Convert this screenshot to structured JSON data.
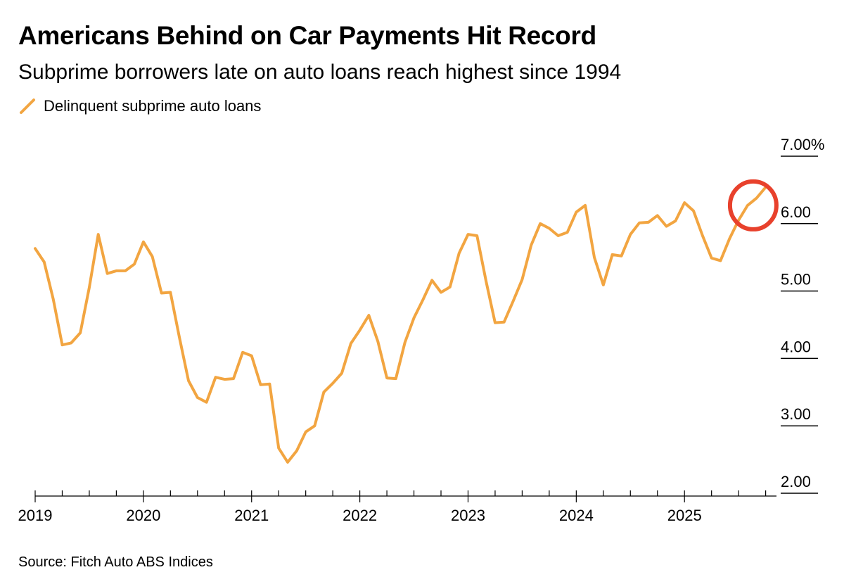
{
  "chart_data": {
    "type": "line",
    "title": "Americans Behind on Car Payments Hit Record",
    "subtitle": "Subprime borrowers late on auto loans reach highest since 1994",
    "source": "Source: Fitch Auto ABS Indices",
    "legend_position": "top-left",
    "grid": false,
    "y_axis_position": "right",
    "ylim": [
      2.0,
      7.0
    ],
    "yticks": [
      2,
      3,
      4,
      5,
      6,
      7
    ],
    "ytick_labels": [
      "2.00",
      "3.00",
      "4.00",
      "5.00",
      "6.00",
      "7.00%"
    ],
    "xlim": [
      2019.0,
      2025.85
    ],
    "xticks": [
      2019,
      2020,
      2021,
      2022,
      2023,
      2024,
      2025
    ],
    "xtick_labels": [
      "2019",
      "2020",
      "2021",
      "2022",
      "2023",
      "2024",
      "2025"
    ],
    "annotation": {
      "type": "circle",
      "color": "#e8412c",
      "marks": "latest value"
    },
    "series": [
      {
        "name": "Delinquent subprime auto loans",
        "color": "#f2a541",
        "x": [
          2019.0,
          2019.083,
          2019.167,
          2019.25,
          2019.333,
          2019.417,
          2019.5,
          2019.583,
          2019.667,
          2019.75,
          2019.833,
          2019.917,
          2020.0,
          2020.083,
          2020.167,
          2020.25,
          2020.333,
          2020.417,
          2020.5,
          2020.583,
          2020.667,
          2020.75,
          2020.833,
          2020.917,
          2021.0,
          2021.083,
          2021.167,
          2021.25,
          2021.333,
          2021.417,
          2021.5,
          2021.583,
          2021.667,
          2021.75,
          2021.833,
          2021.917,
          2022.0,
          2022.083,
          2022.167,
          2022.25,
          2022.333,
          2022.417,
          2022.5,
          2022.583,
          2022.667,
          2022.75,
          2022.833,
          2022.917,
          2023.0,
          2023.083,
          2023.167,
          2023.25,
          2023.333,
          2023.417,
          2023.5,
          2023.583,
          2023.667,
          2023.75,
          2023.833,
          2023.917,
          2024.0,
          2024.083,
          2024.167,
          2024.25,
          2024.333,
          2024.417,
          2024.5,
          2024.583,
          2024.667,
          2024.75,
          2024.833,
          2024.917,
          2025.0,
          2025.083,
          2025.167,
          2025.25,
          2025.333,
          2025.417,
          2025.5,
          2025.583,
          2025.667,
          2025.75
        ],
        "values": [
          5.63,
          5.43,
          4.88,
          4.2,
          4.23,
          4.38,
          5.05,
          5.84,
          5.26,
          5.3,
          5.3,
          5.4,
          5.73,
          5.51,
          4.97,
          4.98,
          4.31,
          3.67,
          3.42,
          3.35,
          3.72,
          3.69,
          3.7,
          4.09,
          4.04,
          3.61,
          3.62,
          2.67,
          2.46,
          2.63,
          2.91,
          3.0,
          3.5,
          3.63,
          3.78,
          4.22,
          4.42,
          4.64,
          4.25,
          3.71,
          3.7,
          4.24,
          4.6,
          4.87,
          5.16,
          4.98,
          5.06,
          5.56,
          5.84,
          5.82,
          5.14,
          4.53,
          4.54,
          4.85,
          5.17,
          5.68,
          6.0,
          5.93,
          5.82,
          5.87,
          6.17,
          6.27,
          5.5,
          5.09,
          5.54,
          5.52,
          5.84,
          6.01,
          6.02,
          6.12,
          5.96,
          6.04,
          6.31,
          6.19,
          5.82,
          5.49,
          5.45,
          5.78,
          6.05,
          6.27,
          6.38,
          6.54
        ]
      }
    ]
  }
}
